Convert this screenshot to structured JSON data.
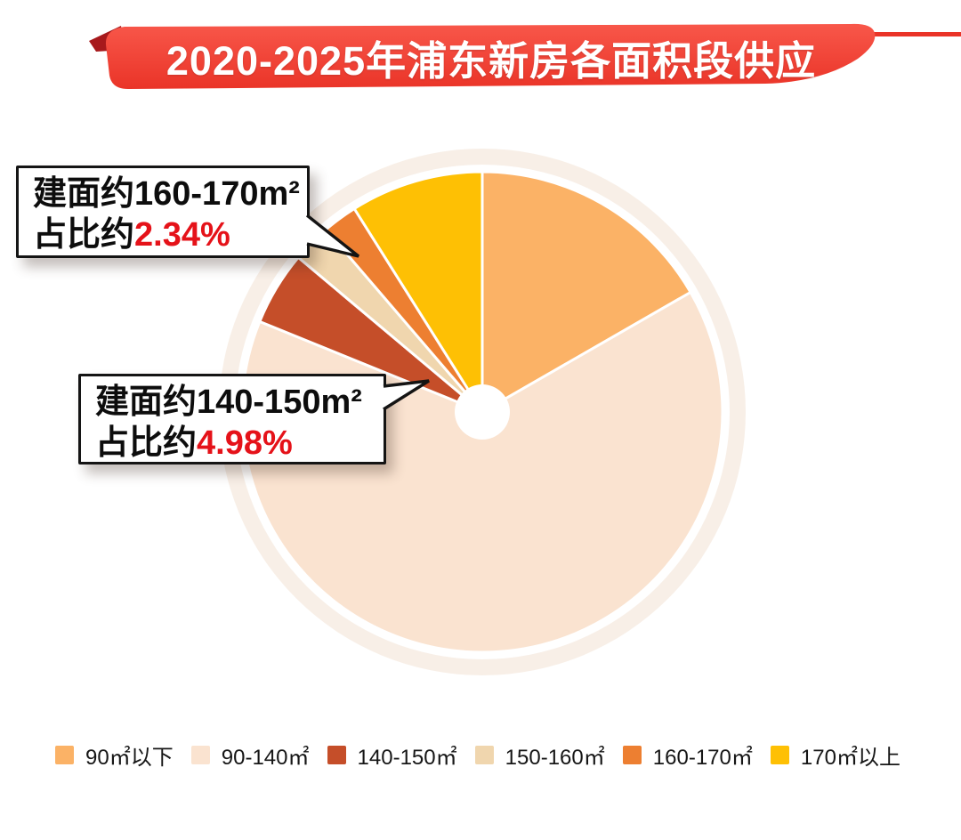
{
  "header": {
    "title": "2020-2025年浦东新房各面积段供应"
  },
  "colors": {
    "banner_red_top": "#F8574A",
    "banner_red_bottom": "#EA3428",
    "banner_fold": "#A7191C",
    "percent_red": "#E51219",
    "halo": "#F8EFE7",
    "pie_ring": "#FFFFFF"
  },
  "callouts": [
    {
      "line1": "建面约160-170m²",
      "prefix": "占比约",
      "value": "2.34%"
    },
    {
      "line1": "建面约140-150m²",
      "prefix": "占比约",
      "value": "4.98%"
    }
  ],
  "chart_data": {
    "type": "pie",
    "title": "2020-2025年浦东新房各面积段供应",
    "direction": "clockwise",
    "start_angle_deg": 0,
    "donut_hole": true,
    "legend_position": "bottom",
    "categories": [
      "90㎡以下",
      "90-140㎡",
      "140-150㎡",
      "150-160㎡",
      "160-170㎡",
      "170㎡以上"
    ],
    "values": [
      16.7,
      64.44,
      4.98,
      2.6,
      2.34,
      8.94
    ],
    "unit": "%",
    "colors": [
      "#FBB266",
      "#FAE3D0",
      "#C54E29",
      "#F0D6AE",
      "#ED7F31",
      "#FEC004"
    ],
    "annotations": [
      {
        "category": "160-170㎡",
        "label": "建面约160-170m²",
        "value_text": "占比约2.34%"
      },
      {
        "category": "140-150㎡",
        "label": "建面约140-150m²",
        "value_text": "占比约4.98%"
      }
    ]
  },
  "legend": {
    "items": [
      {
        "label": "90㎡以下",
        "color": "#FBB266"
      },
      {
        "label": "90-140㎡",
        "color": "#FAE3D0"
      },
      {
        "label": "140-150㎡",
        "color": "#C54E29"
      },
      {
        "label": "150-160㎡",
        "color": "#F0D6AE"
      },
      {
        "label": "160-170㎡",
        "color": "#ED7F31"
      },
      {
        "label": "170㎡以上",
        "color": "#FEC004"
      }
    ]
  }
}
